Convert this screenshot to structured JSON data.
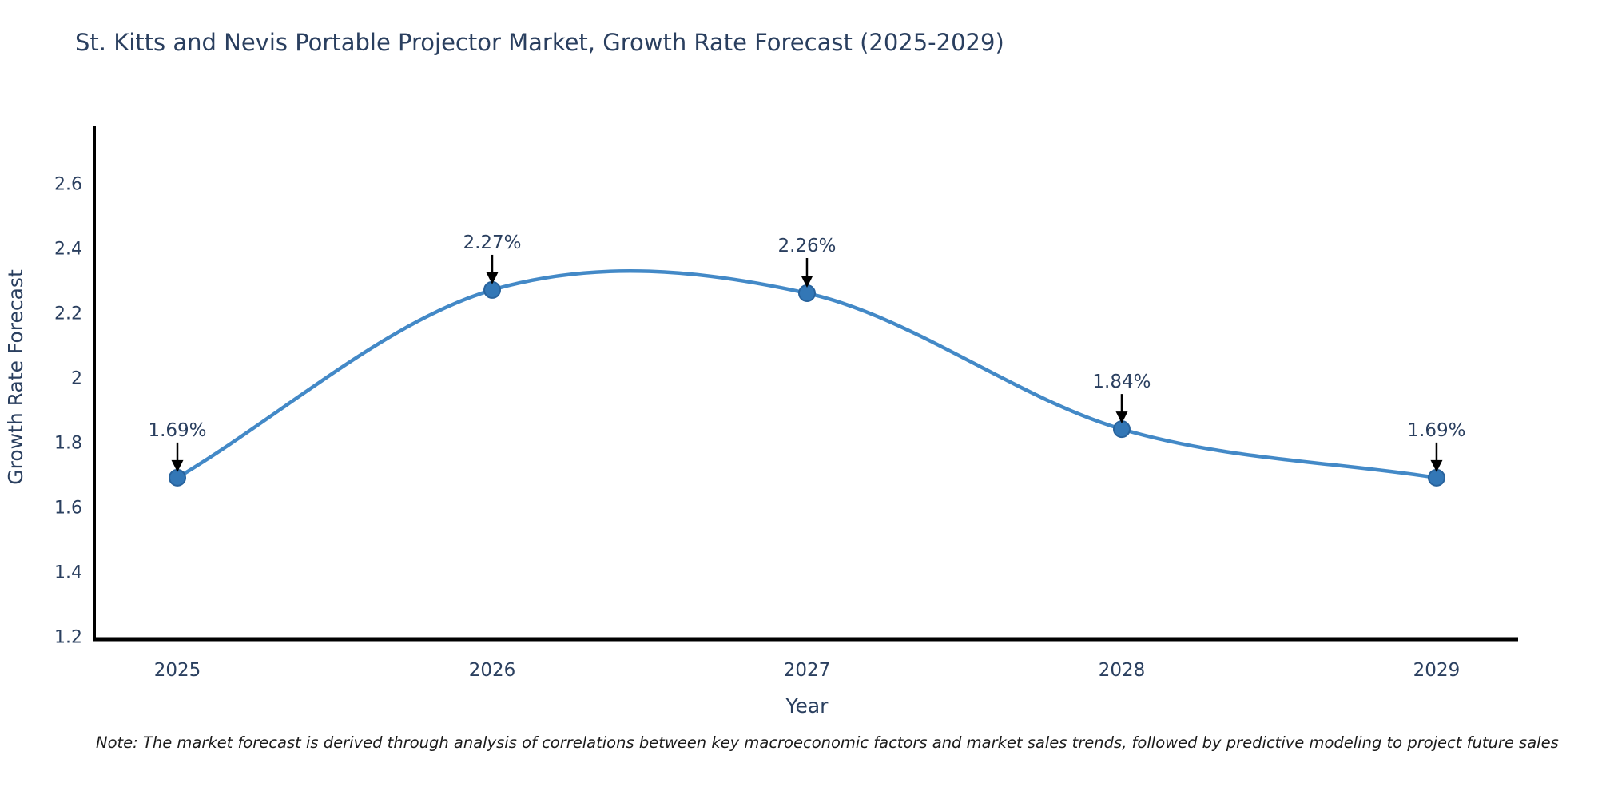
{
  "title": "St. Kitts and Nevis Portable Projector Market, Growth Rate Forecast (2025-2029)",
  "note": "Note: The market forecast is derived through analysis of correlations between key macroeconomic factors and market sales trends, followed by predictive modeling to project future sales",
  "colors": {
    "line": "#4389c7",
    "marker_fill": "#3377b6",
    "marker_stroke": "#28639d",
    "axis": "#000000",
    "text": "#2a3f5f",
    "annotation_text": "#2a3f5f",
    "annotation_arrow": "#000000",
    "note_text": "#1c1c1c",
    "background": "#ffffff"
  },
  "chart_data": {
    "type": "line",
    "title": "St. Kitts and Nevis Portable Projector Market, Growth Rate Forecast (2025-2029)",
    "xlabel": "Year",
    "ylabel": "Growth Rate Forecast",
    "x": [
      2025,
      2026,
      2027,
      2028,
      2029
    ],
    "values": [
      1.69,
      2.27,
      2.26,
      1.84,
      1.69
    ],
    "point_labels": [
      "1.69%",
      "2.27%",
      "2.26%",
      "1.84%",
      "1.69%"
    ],
    "x_ticks": [
      2025,
      2026,
      2027,
      2028,
      2029
    ],
    "y_ticks": [
      1.2,
      1.4,
      1.6,
      1.8,
      2,
      2.2,
      2.4,
      2.6
    ],
    "xlim": [
      2024.736,
      2029.259
    ],
    "ylim": [
      1.191,
      2.771
    ],
    "grid": false,
    "legend": "none",
    "line_shape": "spline",
    "annotations": "value labels with down arrows above each point"
  }
}
